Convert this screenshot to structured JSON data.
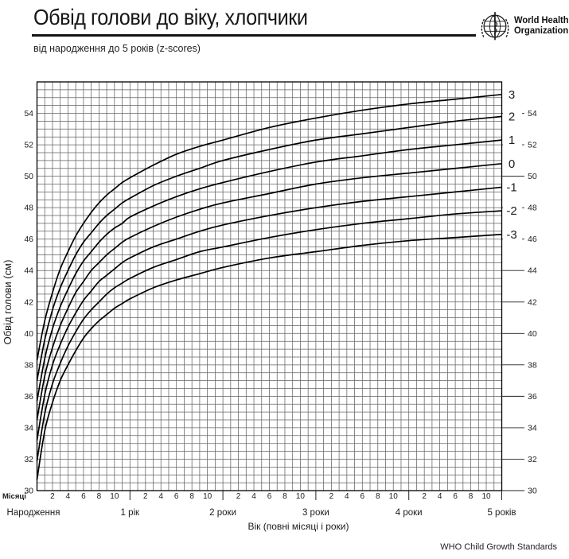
{
  "header": {
    "title": "Обвід голови до віку, хлопчики",
    "subtitle": "від народження до 5 років (z-scores)",
    "logo": {
      "line1": "World Health",
      "line2": "Organization"
    }
  },
  "footer": {
    "credit": "WHO Child Growth Standards"
  },
  "chart_data": {
    "type": "line",
    "title": "Обвід голови до віку, хлопчики",
    "subtitle": "від народження до 5 років (z-scores)",
    "xlabel": "Вік (повні місяці і роки)",
    "ylabel": "Обвід голови (см)",
    "months_caption": "Місяці",
    "ylim": [
      30,
      56
    ],
    "xlim_months": [
      0,
      60
    ],
    "grid": true,
    "grid_step_months": 1,
    "grid_step_cm": 0.5,
    "y_ticks": [
      30,
      32,
      34,
      36,
      38,
      40,
      42,
      44,
      46,
      48,
      50,
      52,
      54
    ],
    "month_tick_labels": [
      2,
      4,
      6,
      8,
      10
    ],
    "year_labels": [
      {
        "label": "Народження",
        "month": 0
      },
      {
        "label": "1 рік",
        "month": 12
      },
      {
        "label": "2 роки",
        "month": 24
      },
      {
        "label": "3 роки",
        "month": 36
      },
      {
        "label": "4 роки",
        "month": 48
      },
      {
        "label": "5 років",
        "month": 60
      }
    ],
    "x_months": [
      0,
      1,
      2,
      3,
      4,
      5,
      6,
      7,
      8,
      9,
      10,
      11,
      12,
      15,
      18,
      21,
      24,
      30,
      36,
      42,
      48,
      54,
      60
    ],
    "series": [
      {
        "name": "3",
        "values": [
          38.3,
          40.8,
          42.6,
          44.1,
          45.2,
          46.2,
          47.0,
          47.7,
          48.3,
          48.8,
          49.2,
          49.6,
          49.9,
          50.7,
          51.4,
          51.9,
          52.3,
          53.1,
          53.7,
          54.2,
          54.6,
          54.9,
          55.2
        ]
      },
      {
        "name": "2",
        "values": [
          37.0,
          39.6,
          41.5,
          42.9,
          44.0,
          45.0,
          45.8,
          46.4,
          47.0,
          47.5,
          47.9,
          48.3,
          48.6,
          49.4,
          50.0,
          50.5,
          51.0,
          51.7,
          52.3,
          52.7,
          53.1,
          53.5,
          53.8
        ]
      },
      {
        "name": "1",
        "values": [
          35.7,
          38.4,
          40.3,
          41.7,
          42.8,
          43.8,
          44.6,
          45.2,
          45.8,
          46.3,
          46.7,
          47.0,
          47.4,
          48.1,
          48.7,
          49.2,
          49.6,
          50.3,
          50.9,
          51.3,
          51.7,
          52.0,
          52.3
        ]
      },
      {
        "name": "0",
        "values": [
          34.5,
          37.3,
          39.1,
          40.5,
          41.6,
          42.6,
          43.3,
          44.0,
          44.5,
          45.0,
          45.4,
          45.8,
          46.1,
          46.8,
          47.4,
          47.9,
          48.3,
          48.9,
          49.5,
          49.9,
          50.2,
          50.5,
          50.8
        ]
      },
      {
        "name": "-1",
        "values": [
          33.2,
          36.1,
          38.0,
          39.3,
          40.4,
          41.3,
          42.1,
          42.7,
          43.3,
          43.7,
          44.1,
          44.5,
          44.8,
          45.5,
          46.0,
          46.5,
          46.9,
          47.5,
          48.0,
          48.4,
          48.7,
          49.0,
          49.3
        ]
      },
      {
        "name": "-2",
        "values": [
          31.9,
          34.9,
          36.8,
          38.1,
          39.2,
          40.1,
          40.9,
          41.5,
          42.0,
          42.5,
          42.9,
          43.2,
          43.5,
          44.2,
          44.7,
          45.2,
          45.5,
          46.1,
          46.6,
          47.0,
          47.3,
          47.6,
          47.8
        ]
      },
      {
        "name": "-3",
        "values": [
          30.7,
          33.8,
          35.6,
          37.0,
          38.0,
          38.9,
          39.7,
          40.3,
          40.8,
          41.2,
          41.6,
          41.9,
          42.2,
          42.9,
          43.4,
          43.8,
          44.2,
          44.8,
          45.2,
          45.6,
          45.9,
          46.1,
          46.3
        ]
      }
    ],
    "curve_color": "#000000",
    "grid_color": "#636363",
    "text_color": "#1c1c1c"
  }
}
